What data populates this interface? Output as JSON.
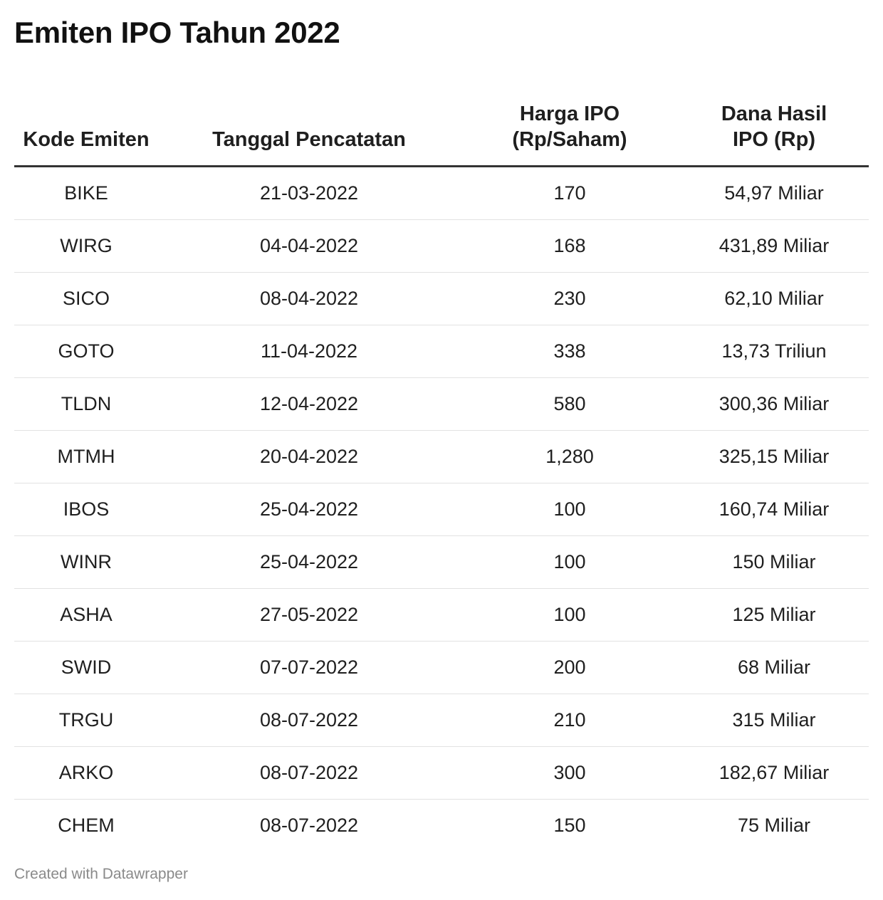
{
  "title": "Emiten IPO Tahun 2022",
  "columns": [
    {
      "line1": "",
      "line2": "Kode Emiten"
    },
    {
      "line1": "",
      "line2": "Tanggal Pencatatan"
    },
    {
      "line1": "Harga IPO",
      "line2": "(Rp/Saham)"
    },
    {
      "line1": "Dana Hasil",
      "line2": "IPO (Rp)"
    }
  ],
  "chart_data": {
    "type": "table",
    "title": "Emiten IPO Tahun 2022",
    "columns": [
      "Kode Emiten",
      "Tanggal Pencatatan",
      "Harga IPO (Rp/Saham)",
      "Dana Hasil IPO (Rp)"
    ],
    "rows": [
      [
        "BIKE",
        "21-03-2022",
        "170",
        "54,97 Miliar"
      ],
      [
        "WIRG",
        "04-04-2022",
        "168",
        "431,89 Miliar"
      ],
      [
        "SICO",
        "08-04-2022",
        "230",
        "62,10 Miliar"
      ],
      [
        "GOTO",
        "11-04-2022",
        "338",
        "13,73 Triliun"
      ],
      [
        "TLDN",
        "12-04-2022",
        "580",
        "300,36 Miliar"
      ],
      [
        "MTMH",
        "20-04-2022",
        "1,280",
        "325,15 Miliar"
      ],
      [
        "IBOS",
        "25-04-2022",
        "100",
        "160,74 Miliar"
      ],
      [
        "WINR",
        "25-04-2022",
        "100",
        "150 Miliar"
      ],
      [
        "ASHA",
        "27-05-2022",
        "100",
        "125 Miliar"
      ],
      [
        "SWID",
        "07-07-2022",
        "200",
        "68 Miliar"
      ],
      [
        "TRGU",
        "08-07-2022",
        "210",
        "315 Miliar"
      ],
      [
        "ARKO",
        "08-07-2022",
        "300",
        "182,67 Miliar"
      ],
      [
        "CHEM",
        "08-07-2022",
        "150",
        "75 Miliar"
      ]
    ]
  },
  "footer": "Created with Datawrapper"
}
